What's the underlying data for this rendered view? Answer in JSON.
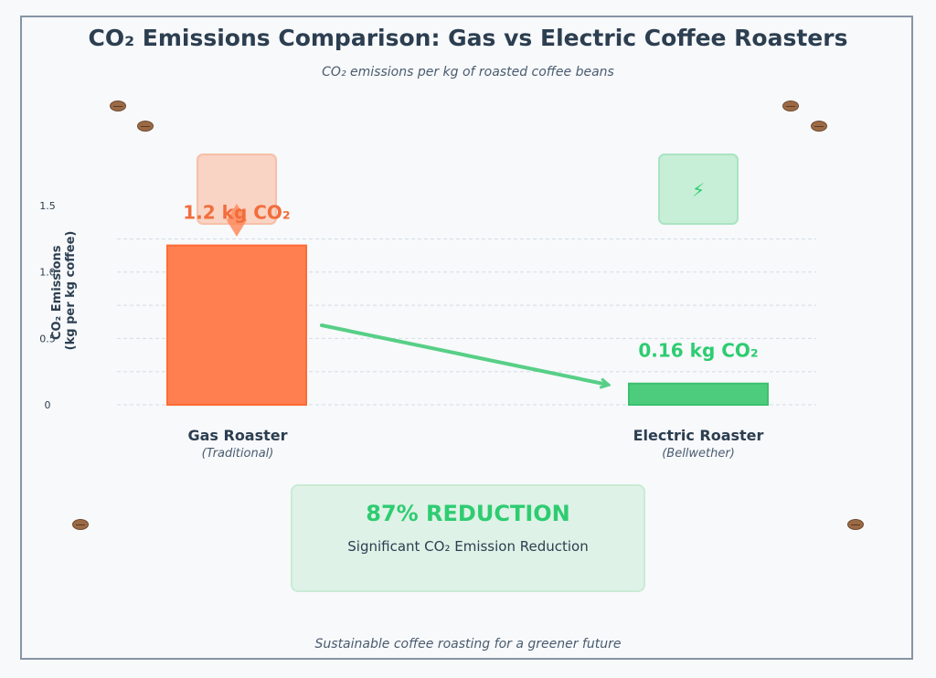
{
  "title": "CO₂ Emissions Comparison: Gas vs Electric Coffee Roasters",
  "subtitle": "CO₂ emissions per kg of roasted coffee beans",
  "footer": "Sustainable coffee roasting for a greener future",
  "colors": {
    "gas": "#ff7f50",
    "electric": "#4ecc7e",
    "gas_text": "#f26d3d",
    "electric_text": "#2ecc71"
  },
  "icons": {
    "gas": "flame-icon",
    "electric": "lightning-bolt-icon",
    "electric_glyph": "⚡"
  },
  "chart_data": {
    "type": "bar",
    "categories": [
      "Gas Roaster",
      "Electric Roaster"
    ],
    "category_subtitles": [
      "(Traditional)",
      "(Bellwether)"
    ],
    "values": [
      1.2,
      0.16
    ],
    "value_labels": [
      "1.2 kg CO₂",
      "0.16 kg CO₂"
    ],
    "ylabel": [
      "CO₂ Emissions",
      "(kg per kg coffee)"
    ],
    "yticks": [
      "0",
      "0.5",
      "1.0",
      "1.5"
    ],
    "ylim": [
      0,
      1.5
    ],
    "grid": true
  },
  "reduction": {
    "headline": "87% REDUCTION",
    "caption": "Significant CO₂ Emission Reduction"
  }
}
